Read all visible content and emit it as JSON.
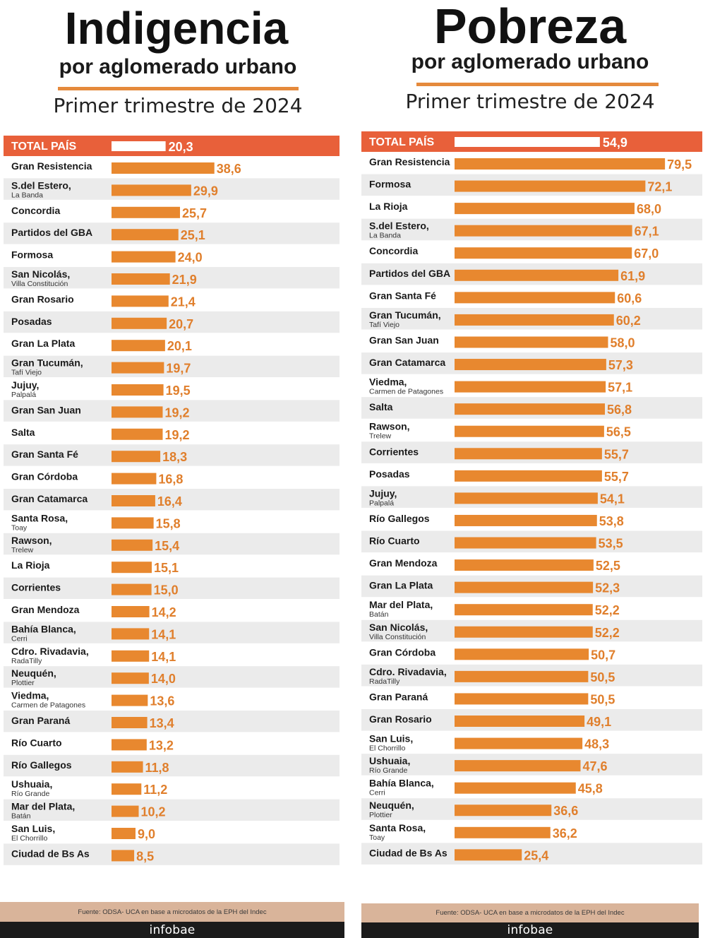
{
  "chart_data": [
    {
      "type": "bar",
      "title": "Indigencia",
      "subtitle": "por aglomerado urbano",
      "period": "Primer trimestre de 2024",
      "xlim": [
        0,
        40
      ],
      "total": {
        "label": "TOTAL PAÍS",
        "value": 20.3,
        "display": "20,3"
      },
      "rows": [
        {
          "label": "Gran Resistencia",
          "sublabel": "",
          "value": 38.6,
          "display": "38,6"
        },
        {
          "label": "S.del Estero,",
          "sublabel": "La Banda",
          "value": 29.9,
          "display": "29,9"
        },
        {
          "label": "Concordia",
          "sublabel": "",
          "value": 25.7,
          "display": "25,7"
        },
        {
          "label": "Partidos del GBA",
          "sublabel": "",
          "value": 25.1,
          "display": "25,1"
        },
        {
          "label": "Formosa",
          "sublabel": "",
          "value": 24.0,
          "display": "24,0"
        },
        {
          "label": "San Nicolás,",
          "sublabel": "Villa Constitución",
          "value": 21.9,
          "display": "21,9"
        },
        {
          "label": "Gran Rosario",
          "sublabel": "",
          "value": 21.4,
          "display": "21,4"
        },
        {
          "label": "Posadas",
          "sublabel": "",
          "value": 20.7,
          "display": "20,7"
        },
        {
          "label": "Gran La Plata",
          "sublabel": "",
          "value": 20.1,
          "display": "20,1"
        },
        {
          "label": "Gran Tucumán,",
          "sublabel": "Tafí Viejo",
          "value": 19.7,
          "display": "19,7"
        },
        {
          "label": "Jujuy,",
          "sublabel": "Palpalá",
          "value": 19.5,
          "display": "19,5"
        },
        {
          "label": "Gran San Juan",
          "sublabel": "",
          "value": 19.2,
          "display": "19,2"
        },
        {
          "label": "Salta",
          "sublabel": "",
          "value": 19.2,
          "display": "19,2"
        },
        {
          "label": "Gran Santa Fé",
          "sublabel": "",
          "value": 18.3,
          "display": "18,3"
        },
        {
          "label": "Gran Córdoba",
          "sublabel": "",
          "value": 16.8,
          "display": "16,8"
        },
        {
          "label": "Gran Catamarca",
          "sublabel": "",
          "value": 16.4,
          "display": "16,4"
        },
        {
          "label": "Santa Rosa,",
          "sublabel": "Toay",
          "value": 15.8,
          "display": "15,8"
        },
        {
          "label": "Rawson,",
          "sublabel": "Trelew",
          "value": 15.4,
          "display": "15,4"
        },
        {
          "label": "La Rioja",
          "sublabel": "",
          "value": 15.1,
          "display": "15,1"
        },
        {
          "label": "Corrientes",
          "sublabel": "",
          "value": 15.0,
          "display": "15,0"
        },
        {
          "label": "Gran Mendoza",
          "sublabel": "",
          "value": 14.2,
          "display": "14,2"
        },
        {
          "label": "Bahía Blanca,",
          "sublabel": "Cerri",
          "value": 14.1,
          "display": "14,1"
        },
        {
          "label": "Cdro. Rivadavia,",
          "sublabel": "RadaTilly",
          "value": 14.1,
          "display": "14,1"
        },
        {
          "label": "Neuquén,",
          "sublabel": "Plottier",
          "value": 14.0,
          "display": "14,0"
        },
        {
          "label": "Viedma,",
          "sublabel": "Carmen de Patagones",
          "value": 13.6,
          "display": "13,6"
        },
        {
          "label": "Gran Paraná",
          "sublabel": "",
          "value": 13.4,
          "display": "13,4"
        },
        {
          "label": "Río Cuarto",
          "sublabel": "",
          "value": 13.2,
          "display": "13,2"
        },
        {
          "label": "Río Gallegos",
          "sublabel": "",
          "value": 11.8,
          "display": "11,8"
        },
        {
          "label": "Ushuaia,",
          "sublabel": "Río Grande",
          "value": 11.2,
          "display": "11,2"
        },
        {
          "label": "Mar del Plata,",
          "sublabel": "Batán",
          "value": 10.2,
          "display": "10,2"
        },
        {
          "label": "San Luis,",
          "sublabel": "El Chorrillo",
          "value": 9.0,
          "display": "9,0"
        },
        {
          "label": "Ciudad de Bs As",
          "sublabel": "",
          "value": 8.5,
          "display": "8,5"
        }
      ],
      "source": "Fuente: ODSA- UCA en base a microdatos de la EPH del Indec",
      "brand": "infobae"
    },
    {
      "type": "bar",
      "title": "Pobreza",
      "subtitle": "por aglomerado urbano",
      "period": "Primer trimestre de 2024",
      "xlim": [
        0,
        80
      ],
      "total": {
        "label": "TOTAL PAÍS",
        "value": 54.9,
        "display": "54,9"
      },
      "rows": [
        {
          "label": "Gran Resistencia",
          "sublabel": "",
          "value": 79.5,
          "display": "79,5"
        },
        {
          "label": "Formosa",
          "sublabel": "",
          "value": 72.1,
          "display": "72,1"
        },
        {
          "label": "La Rioja",
          "sublabel": "",
          "value": 68.0,
          "display": "68,0"
        },
        {
          "label": "S.del Estero,",
          "sublabel": "La Banda",
          "value": 67.1,
          "display": "67,1"
        },
        {
          "label": "Concordia",
          "sublabel": "",
          "value": 67.0,
          "display": "67,0"
        },
        {
          "label": "Partidos del GBA",
          "sublabel": "",
          "value": 61.9,
          "display": "61,9"
        },
        {
          "label": "Gran Santa Fé",
          "sublabel": "",
          "value": 60.6,
          "display": "60,6"
        },
        {
          "label": "Gran Tucumán,",
          "sublabel": "Tafí Viejo",
          "value": 60.2,
          "display": "60,2"
        },
        {
          "label": "Gran San Juan",
          "sublabel": "",
          "value": 58.0,
          "display": "58,0"
        },
        {
          "label": "Gran Catamarca",
          "sublabel": "",
          "value": 57.3,
          "display": "57,3"
        },
        {
          "label": "Viedma,",
          "sublabel": "Carmen de Patagones",
          "value": 57.1,
          "display": "57,1"
        },
        {
          "label": "Salta",
          "sublabel": "",
          "value": 56.8,
          "display": "56,8"
        },
        {
          "label": "Rawson,",
          "sublabel": "Trelew",
          "value": 56.5,
          "display": "56,5"
        },
        {
          "label": "Corrientes",
          "sublabel": "",
          "value": 55.7,
          "display": "55,7"
        },
        {
          "label": "Posadas",
          "sublabel": "",
          "value": 55.7,
          "display": "55,7"
        },
        {
          "label": "Jujuy,",
          "sublabel": "Palpalá",
          "value": 54.1,
          "display": "54,1"
        },
        {
          "label": "Río Gallegos",
          "sublabel": "",
          "value": 53.8,
          "display": "53,8"
        },
        {
          "label": "Río Cuarto",
          "sublabel": "",
          "value": 53.5,
          "display": "53,5"
        },
        {
          "label": "Gran Mendoza",
          "sublabel": "",
          "value": 52.5,
          "display": "52,5"
        },
        {
          "label": "Gran La Plata",
          "sublabel": "",
          "value": 52.3,
          "display": "52,3"
        },
        {
          "label": "Mar del Plata,",
          "sublabel": "Batán",
          "value": 52.2,
          "display": "52,2"
        },
        {
          "label": "San Nicolás,",
          "sublabel": "Villa Constitución",
          "value": 52.2,
          "display": "52,2"
        },
        {
          "label": "Gran Córdoba",
          "sublabel": "",
          "value": 50.7,
          "display": "50,7"
        },
        {
          "label": "Cdro. Rivadavia,",
          "sublabel": "RadaTilly",
          "value": 50.5,
          "display": "50,5"
        },
        {
          "label": "Gran Paraná",
          "sublabel": "",
          "value": 50.5,
          "display": "50,5"
        },
        {
          "label": "Gran Rosario",
          "sublabel": "",
          "value": 49.1,
          "display": "49,1"
        },
        {
          "label": "San Luis,",
          "sublabel": "El Chorrillo",
          "value": 48.3,
          "display": "48,3"
        },
        {
          "label": "Ushuaia,",
          "sublabel": "Río Grande",
          "value": 47.6,
          "display": "47,6"
        },
        {
          "label": "Bahía Blanca,",
          "sublabel": "Cerri",
          "value": 45.8,
          "display": "45,8"
        },
        {
          "label": "Neuquén,",
          "sublabel": "Plottier",
          "value": 36.6,
          "display": "36,6"
        },
        {
          "label": "Santa Rosa,",
          "sublabel": "Toay",
          "value": 36.2,
          "display": "36,2"
        },
        {
          "label": "Ciudad de Bs As",
          "sublabel": "",
          "value": 25.4,
          "display": "25,4"
        }
      ],
      "source": "Fuente: ODSA- UCA en base a microdatos de la EPH del Indec",
      "brand": "infobae"
    }
  ],
  "colors": {
    "bar": "#e8882f",
    "total_band": "#e8603a",
    "total_bar": "#ffffff",
    "value_text": "#e07f2c",
    "row_alt": "#ebebeb",
    "rule": "#e58a3c"
  }
}
